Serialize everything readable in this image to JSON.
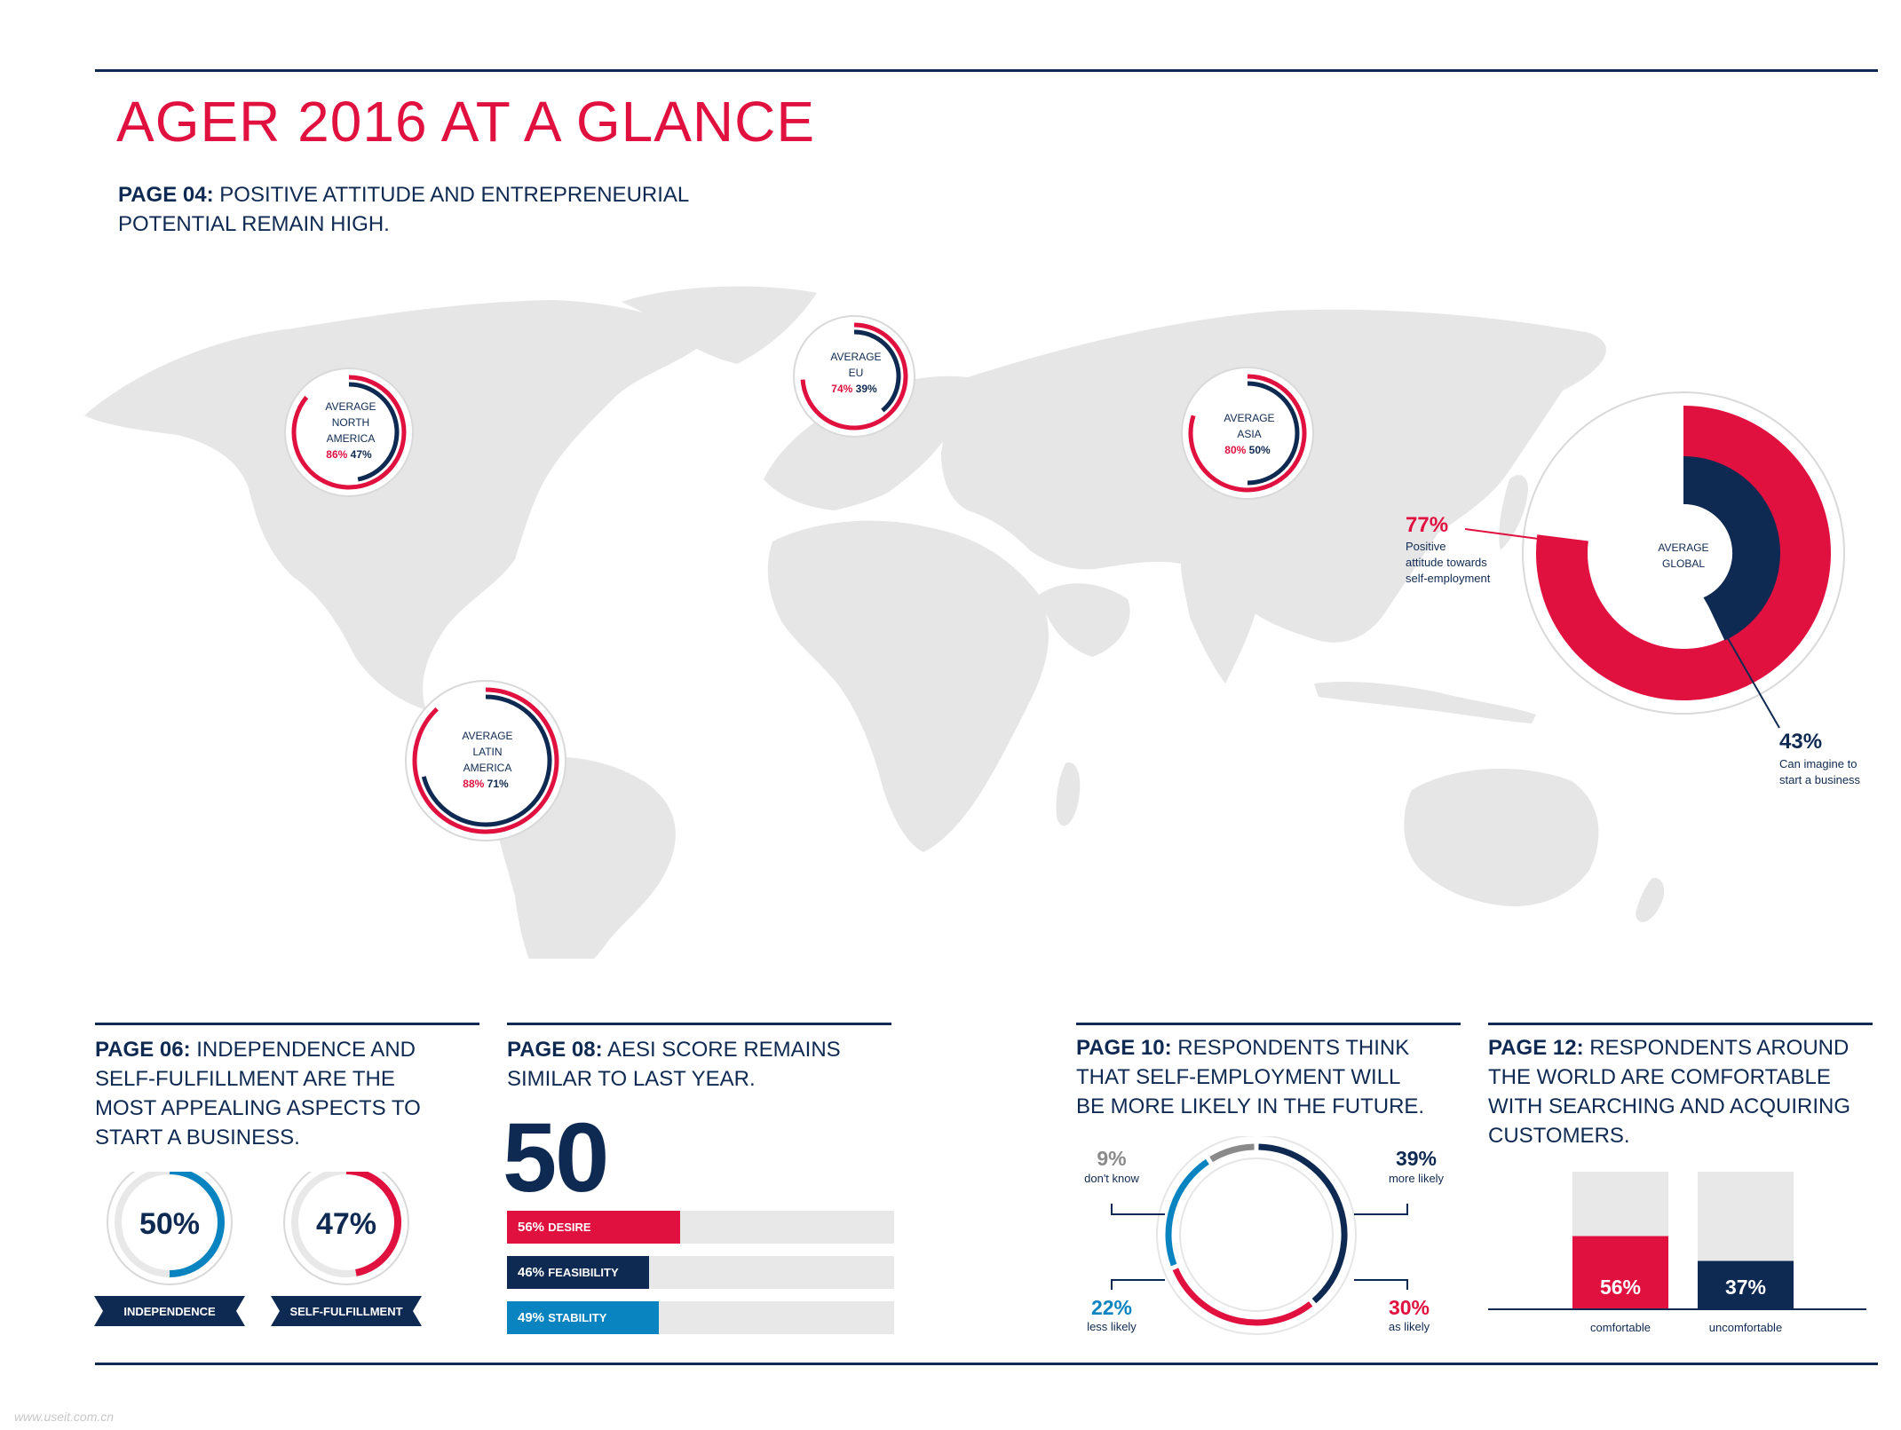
{
  "title": "AGER 2016 AT A GLANCE",
  "colors": {
    "red": "#e0103f",
    "navy": "#0f2a52",
    "blue": "#0a84c0",
    "gray": "#8a8a8a",
    "light": "#e8e8e8",
    "map": "#e6e6e6"
  },
  "page04": {
    "label": "PAGE 04:",
    "text_line1": "POSITIVE ATTITUDE AND ENTREPRENEURIAL",
    "text_line2": "POTENTIAL REMAIN HIGH."
  },
  "regions": [
    {
      "name_line1": "AVERAGE",
      "name_line2": "NORTH",
      "name_line3": "AMERICA",
      "positive": "86%",
      "imagine": "47%"
    },
    {
      "name_line1": "AVERAGE",
      "name_line2": "EU",
      "name_line3": "",
      "positive": "74%",
      "imagine": "39%"
    },
    {
      "name_line1": "AVERAGE",
      "name_line2": "ASIA",
      "name_line3": "",
      "positive": "80%",
      "imagine": "50%"
    },
    {
      "name_line1": "AVERAGE",
      "name_line2": "LATIN",
      "name_line3": "AMERICA",
      "positive": "88%",
      "imagine": "71%"
    }
  ],
  "global": {
    "name_line1": "AVERAGE",
    "name_line2": "GLOBAL",
    "positive": "77%",
    "positive_l1": "Positive",
    "positive_l2": "attitude towards",
    "positive_l3": "self-employment",
    "imagine": "43%",
    "imagine_l1": "Can imagine to",
    "imagine_l2": "start a business"
  },
  "page06": {
    "label": "PAGE 06:",
    "l1": "INDEPENDENCE AND",
    "l2": "SELF-FULFILLMENT ARE THE",
    "l3": "MOST APPEALING ASPECTS TO",
    "l4": "START A BUSINESS.",
    "items": [
      {
        "value": "50%",
        "label": "INDEPENDENCE"
      },
      {
        "value": "47%",
        "label": "SELF-FULFILLMENT"
      }
    ]
  },
  "page08": {
    "label": "PAGE 08:",
    "l1": "AESI SCORE REMAINS",
    "l2": "SIMILAR TO LAST YEAR.",
    "score": "50",
    "bars": [
      {
        "pct": "56%",
        "name": "DESIRE"
      },
      {
        "pct": "46%",
        "name": "FEASIBILITY"
      },
      {
        "pct": "49%",
        "name": "STABILITY"
      }
    ]
  },
  "page10": {
    "label": "PAGE 10:",
    "l1": "RESPONDENTS THINK",
    "l2": "THAT SELF-EMPLOYMENT WILL",
    "l3": "BE MORE LIKELY IN THE FUTURE.",
    "segments": [
      {
        "value": "39%",
        "label": "more likely"
      },
      {
        "value": "30%",
        "label": "as likely"
      },
      {
        "value": "22%",
        "label": "less likely"
      },
      {
        "value": "9%",
        "label": "don't know"
      }
    ]
  },
  "page12": {
    "label": "PAGE 12:",
    "l1": "RESPONDENTS AROUND",
    "l2": "THE WORLD ARE COMFORTABLE",
    "l3": "WITH SEARCHING AND ACQUIRING",
    "l4": "CUSTOMERS.",
    "bars": [
      {
        "value": "56%",
        "label": "comfortable"
      },
      {
        "value": "37%",
        "label": "uncomfortable"
      }
    ]
  },
  "watermark": "www.useit.com.cn",
  "chart_data": [
    {
      "type": "pie",
      "title": "AVERAGE NORTH AMERICA",
      "series": [
        {
          "name": "Positive attitude towards self-employment",
          "values": [
            86
          ]
        },
        {
          "name": "Can imagine to start a business",
          "values": [
            47
          ]
        }
      ]
    },
    {
      "type": "pie",
      "title": "AVERAGE EU",
      "series": [
        {
          "name": "Positive attitude towards self-employment",
          "values": [
            74
          ]
        },
        {
          "name": "Can imagine to start a business",
          "values": [
            39
          ]
        }
      ]
    },
    {
      "type": "pie",
      "title": "AVERAGE ASIA",
      "series": [
        {
          "name": "Positive attitude towards self-employment",
          "values": [
            80
          ]
        },
        {
          "name": "Can imagine to start a business",
          "values": [
            50
          ]
        }
      ]
    },
    {
      "type": "pie",
      "title": "AVERAGE LATIN AMERICA",
      "series": [
        {
          "name": "Positive attitude towards self-employment",
          "values": [
            88
          ]
        },
        {
          "name": "Can imagine to start a business",
          "values": [
            71
          ]
        }
      ]
    },
    {
      "type": "pie",
      "title": "AVERAGE GLOBAL",
      "series": [
        {
          "name": "Positive attitude towards self-employment",
          "values": [
            77
          ]
        },
        {
          "name": "Can imagine to start a business",
          "values": [
            43
          ]
        }
      ]
    },
    {
      "type": "pie",
      "title": "Appealing aspects",
      "categories": [
        "INDEPENDENCE",
        "SELF-FULFILLMENT"
      ],
      "values": [
        50,
        47
      ]
    },
    {
      "type": "bar",
      "title": "AESI SCORE",
      "score": 50,
      "categories": [
        "DESIRE",
        "FEASIBILITY",
        "STABILITY"
      ],
      "values": [
        56,
        46,
        49
      ],
      "ylim": [
        0,
        100
      ]
    },
    {
      "type": "pie",
      "title": "Self-employment in the future",
      "categories": [
        "more likely",
        "as likely",
        "less likely",
        "don't know"
      ],
      "values": [
        39,
        30,
        22,
        9
      ]
    },
    {
      "type": "bar",
      "title": "Searching and acquiring customers",
      "categories": [
        "comfortable",
        "uncomfortable"
      ],
      "values": [
        56,
        37
      ],
      "ylim": [
        0,
        100
      ]
    }
  ]
}
